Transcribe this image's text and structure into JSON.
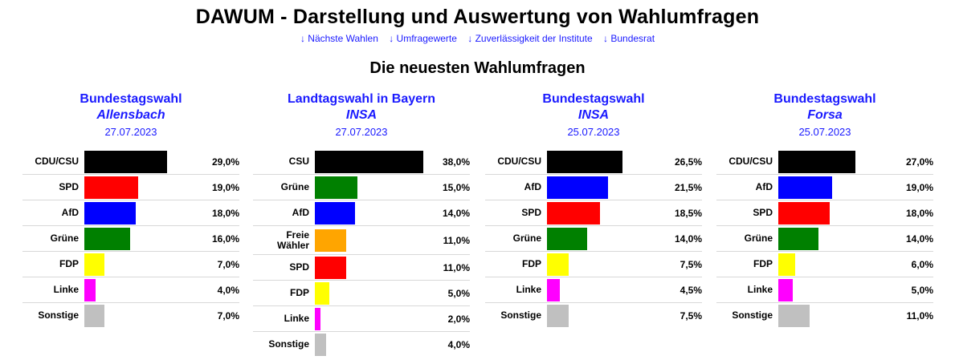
{
  "header": {
    "title": "DAWUM - Darstellung und Auswertung von Wahlumfragen",
    "nav": [
      "↓ Nächste Wahlen",
      "↓ Umfragewerte",
      "↓ Zuverlässigkeit der Institute",
      "↓ Bundesrat"
    ],
    "subtitle": "Die neuesten Wahlumfragen"
  },
  "colors": {
    "link": "#1a1aff",
    "CDU/CSU": "#000000",
    "CSU": "#000000",
    "SPD": "#ff0000",
    "AfD": "#0000ff",
    "Grüne": "#008000",
    "FDP": "#ffff00",
    "Linke": "#ff00ff",
    "Sonstige": "#c0c0c0",
    "Freie Wähler": "#ffa500"
  },
  "chart_data": [
    {
      "type": "bar",
      "title": "Bundestagswahl",
      "institute": "Allensbach",
      "date": "27.07.2023",
      "categories": [
        "CDU/CSU",
        "SPD",
        "AfD",
        "Grüne",
        "FDP",
        "Linke",
        "Sonstige"
      ],
      "values": [
        29.0,
        19.0,
        18.0,
        16.0,
        7.0,
        4.0,
        7.0
      ],
      "labels": [
        "29,0%",
        "19,0%",
        "18,0%",
        "16,0%",
        "7,0%",
        "4,0%",
        "7,0%"
      ]
    },
    {
      "type": "bar",
      "title": "Landtagswahl in Bayern",
      "institute": "INSA",
      "date": "27.07.2023",
      "categories": [
        "CSU",
        "Grüne",
        "AfD",
        "Freie Wähler",
        "SPD",
        "FDP",
        "Linke",
        "Sonstige"
      ],
      "values": [
        38.0,
        15.0,
        14.0,
        11.0,
        11.0,
        5.0,
        2.0,
        4.0
      ],
      "labels": [
        "38,0%",
        "15,0%",
        "14,0%",
        "11,0%",
        "11,0%",
        "5,0%",
        "2,0%",
        "4,0%"
      ]
    },
    {
      "type": "bar",
      "title": "Bundestagswahl",
      "institute": "INSA",
      "date": "25.07.2023",
      "categories": [
        "CDU/CSU",
        "AfD",
        "SPD",
        "Grüne",
        "FDP",
        "Linke",
        "Sonstige"
      ],
      "values": [
        26.5,
        21.5,
        18.5,
        14.0,
        7.5,
        4.5,
        7.5
      ],
      "labels": [
        "26,5%",
        "21,5%",
        "18,5%",
        "14,0%",
        "7,5%",
        "4,5%",
        "7,5%"
      ]
    },
    {
      "type": "bar",
      "title": "Bundestagswahl",
      "institute": "Forsa",
      "date": "25.07.2023",
      "categories": [
        "CDU/CSU",
        "AfD",
        "SPD",
        "Grüne",
        "FDP",
        "Linke",
        "Sonstige"
      ],
      "values": [
        27.0,
        19.0,
        18.0,
        14.0,
        6.0,
        5.0,
        11.0
      ],
      "labels": [
        "27,0%",
        "19,0%",
        "18,0%",
        "14,0%",
        "6,0%",
        "5,0%",
        "11,0%"
      ]
    }
  ]
}
